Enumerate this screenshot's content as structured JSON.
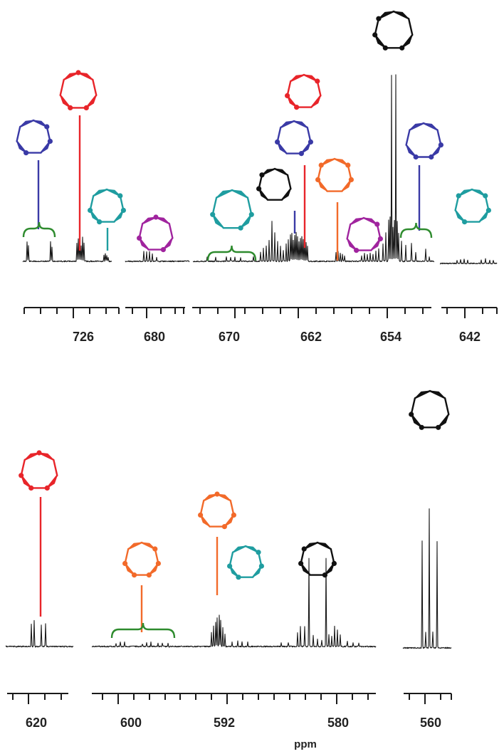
{
  "chart_data": {
    "type": "line",
    "title": "",
    "xlabel": "ppm",
    "colors": {
      "red": "#e8252a",
      "blue": "#3a3aa6",
      "teal": "#1f9da0",
      "purple": "#a0249e",
      "orange": "#f26a2a",
      "black": "#111111",
      "bracket": "#2e8b2e"
    },
    "panels": [
      {
        "id": "top",
        "tick_labels": [
          "726",
          "680",
          "670",
          "662",
          "654",
          "642"
        ],
        "segments": [
          {
            "range_ppm": [
              732,
              721
            ],
            "labeled_ticks": [
              "726"
            ]
          },
          {
            "range_ppm": [
              684,
              676
            ],
            "labeled_ticks": [
              "680"
            ]
          },
          {
            "range_ppm": [
              678,
              648
            ],
            "labeled_ticks": [
              "670",
              "662",
              "654"
            ]
          },
          {
            "range_ppm": [
              646,
              638
            ],
            "labeled_ticks": [
              "642"
            ]
          }
        ],
        "assignments": [
          {
            "structure": "blue-isomer",
            "color": "blue",
            "marker": "bracket",
            "ppm": 730.0
          },
          {
            "structure": "red-isomer",
            "color": "red",
            "marker": "line",
            "ppm": 726.0
          },
          {
            "structure": "teal-isomer",
            "color": "teal",
            "marker": "line",
            "ppm": 723.2
          },
          {
            "structure": "purple-isomer",
            "color": "purple",
            "marker": "none",
            "ppm": 680.0
          },
          {
            "structure": "teal-isomer",
            "color": "teal",
            "marker": "bracket",
            "ppm": 670.2
          },
          {
            "structure": "black-isomer",
            "color": "black",
            "marker": "none",
            "ppm": 664.5
          },
          {
            "structure": "blue-isomer",
            "color": "blue",
            "marker": "line",
            "ppm": 662.6
          },
          {
            "structure": "red-isomer",
            "color": "red",
            "marker": "line",
            "ppm": 662.0
          },
          {
            "structure": "orange-isomer",
            "color": "orange",
            "marker": "line",
            "ppm": 659.4
          },
          {
            "structure": "purple-isomer",
            "color": "purple",
            "marker": "none",
            "ppm": 656.5
          },
          {
            "structure": "black-isomer",
            "color": "black",
            "marker": "line",
            "ppm": 654.0
          },
          {
            "structure": "blue-isomer",
            "color": "blue",
            "marker": "bracket",
            "ppm": 650.8
          },
          {
            "structure": "teal-isomer",
            "color": "teal",
            "marker": "none",
            "ppm": 642.0
          }
        ]
      },
      {
        "id": "bottom",
        "tick_labels": [
          "620",
          "600",
          "592",
          "580",
          "560"
        ],
        "segments": [
          {
            "range_ppm": [
              625,
              615
            ],
            "labeled_ticks": [
              "620"
            ]
          },
          {
            "range_ppm": [
              604,
              574
            ],
            "labeled_ticks": [
              "600",
              "592",
              "580"
            ]
          },
          {
            "range_ppm": [
              564,
              556
            ],
            "labeled_ticks": [
              "560"
            ]
          }
        ],
        "assignments": [
          {
            "structure": "red-isomer",
            "color": "red",
            "marker": "line",
            "ppm": 619.7
          },
          {
            "structure": "orange-isomer",
            "color": "orange",
            "marker": "bracket",
            "ppm": 598.4
          },
          {
            "structure": "orange-isomer",
            "color": "orange",
            "marker": "line",
            "ppm": 592.0
          },
          {
            "structure": "teal-isomer",
            "color": "teal",
            "marker": "none",
            "ppm": 589.0
          },
          {
            "structure": "black-isomer",
            "color": "black",
            "marker": "none",
            "ppm": 582.0
          },
          {
            "structure": "black-isomer",
            "color": "black",
            "marker": "none",
            "ppm": 560.0
          }
        ]
      }
    ]
  }
}
